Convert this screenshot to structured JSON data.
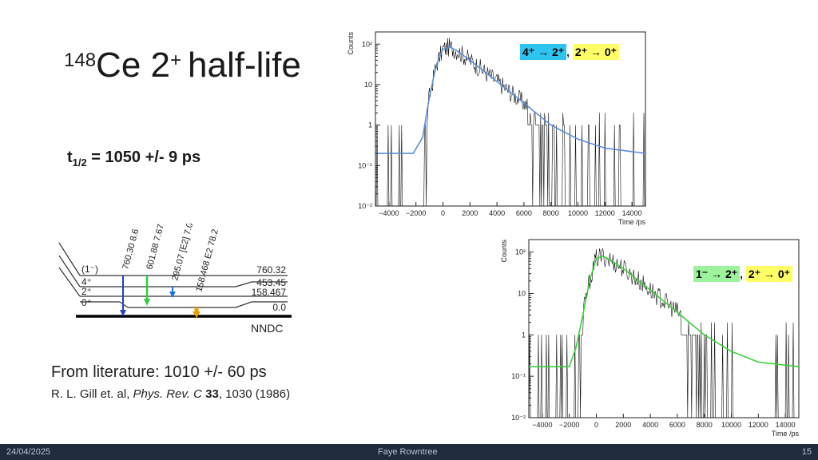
{
  "slide": {
    "title_mass": "148",
    "title_elem": "Ce 2",
    "title_sup": "+",
    "title_rest": "half-life",
    "halflife_t": "t",
    "halflife_sub": "1/2",
    "halflife_value": " = 1050 +/- 9 ps",
    "literature": "From literature: 1010 +/- 60 ps",
    "ref_authors": "R. L. Gill et. al, ",
    "ref_journal": "Phys. Rev. C",
    "ref_volume": " 33",
    "ref_rest": ", 1030 (1986)",
    "nndc_label": "NNDC"
  },
  "level_scheme": {
    "levels": [
      {
        "spin": "(1⁻)",
        "energy": "760.32"
      },
      {
        "spin": "4⁺",
        "energy": "453.45"
      },
      {
        "spin": "2⁺",
        "energy": "158.467"
      },
      {
        "spin": "0⁺",
        "energy": "0.0"
      }
    ],
    "transitions": [
      {
        "label": "760.30  8.6",
        "color": "#1e3fd0"
      },
      {
        "label": "601.88  7.67",
        "color": "#2ecc40"
      },
      {
        "label": "295.07  [E2] 7.01",
        "color": "#1e6fe0"
      },
      {
        "label": "158.468  E2  78.2",
        "color": "#e8a000"
      }
    ]
  },
  "chart_data": [
    {
      "type": "line",
      "title": "",
      "xlabel": "Time /ps",
      "ylabel": "Counts",
      "x_ticks": [
        "−4000",
        "−2000",
        "0",
        "2000",
        "4000",
        "6000",
        "8000",
        "10000",
        "12000",
        "14000"
      ],
      "y_ticks": [
        "10⁻²",
        "10⁻¹",
        "1",
        "10",
        "10²"
      ],
      "xlim": [
        -5000,
        15000
      ],
      "ylim": [
        0.01,
        200
      ],
      "yscale": "log",
      "fit_color": "#5b8fd6",
      "fit": {
        "x": [
          -5000,
          -2200,
          -1500,
          -1000,
          -500,
          0,
          500,
          1000,
          2000,
          4000,
          6000,
          8000,
          10000,
          12000,
          15000
        ],
        "y": [
          0.2,
          0.2,
          0.5,
          5,
          30,
          75,
          85,
          70,
          40,
          12,
          3.5,
          1.0,
          0.45,
          0.27,
          0.2
        ]
      },
      "labels": [
        {
          "text": "4⁺ → 2⁺",
          "bg": "#2ec4f0"
        },
        {
          "text": ", ",
          "bg": ""
        },
        {
          "text": "2⁺ → 0⁺",
          "bg": "#ffff66"
        }
      ]
    },
    {
      "type": "line",
      "title": "",
      "xlabel": "Time /ps",
      "ylabel": "Counts",
      "x_ticks": [
        "−4000",
        "−2000",
        "0",
        "2000",
        "4000",
        "6000",
        "8000",
        "10000",
        "12000",
        "14000"
      ],
      "y_ticks": [
        "10⁻²",
        "10⁻¹",
        "1",
        "10",
        "10²"
      ],
      "xlim": [
        -5000,
        15000
      ],
      "ylim": [
        0.01,
        200
      ],
      "yscale": "log",
      "fit_color": "#3ad13a",
      "fit": {
        "x": [
          -5000,
          -2000,
          -1500,
          -1000,
          -500,
          0,
          500,
          1000,
          2000,
          4000,
          6000,
          8000,
          10000,
          12000,
          15000
        ],
        "y": [
          0.17,
          0.17,
          0.5,
          3,
          20,
          70,
          80,
          65,
          40,
          12,
          3.5,
          1.0,
          0.4,
          0.22,
          0.17
        ]
      },
      "labels": [
        {
          "text": "1⁻ → 2⁺",
          "bg": "#9df29d"
        },
        {
          "text": ", ",
          "bg": ""
        },
        {
          "text": "2⁺ → 0⁺",
          "bg": "#ffff66"
        }
      ]
    }
  ],
  "footer": {
    "date": "24/04/2025",
    "author": "Faye Rowntree",
    "page": "15"
  }
}
